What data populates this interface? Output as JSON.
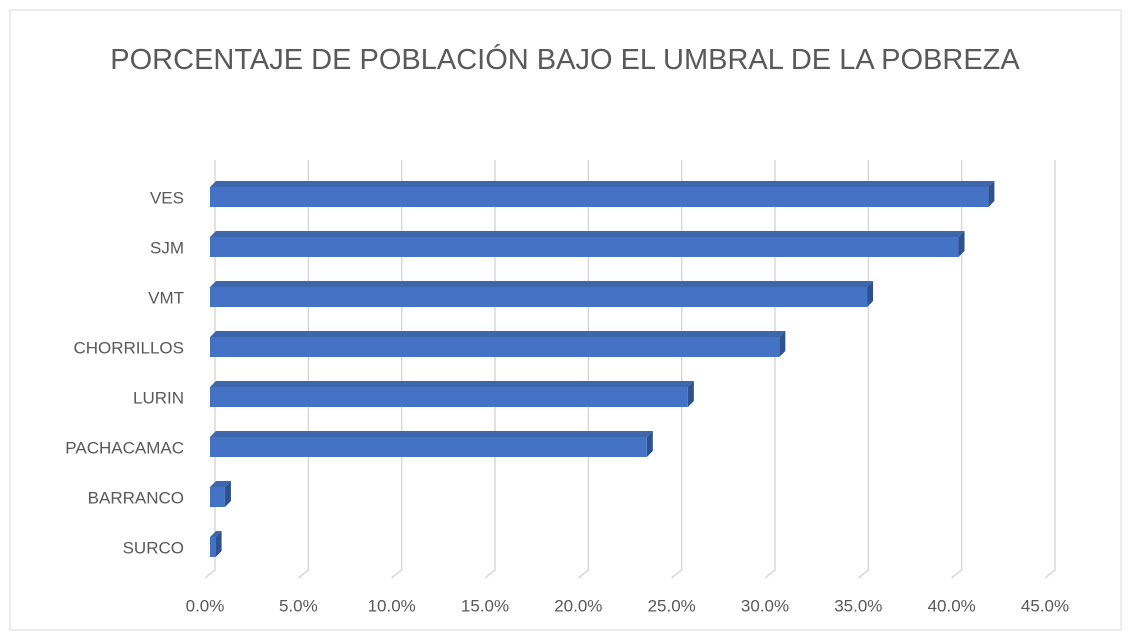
{
  "chart_data": {
    "type": "bar",
    "orientation": "horizontal",
    "title": "PORCENTAJE DE POBLACIÓN BAJO EL UMBRAL DE  LA POBREZA",
    "categories": [
      "VES",
      "SJM",
      "VMT",
      "CHORRILLOS",
      "LURIN",
      "PACHACAMAC",
      "BARRANCO",
      "SURCO"
    ],
    "values": [
      41.7,
      40.1,
      35.2,
      30.5,
      25.6,
      23.4,
      0.8,
      0.3
    ],
    "color": "#4472c4",
    "xlim": [
      0,
      45
    ],
    "xticks": [
      {
        "value": 0,
        "label": "0.0%"
      },
      {
        "value": 5,
        "label": "5.0%"
      },
      {
        "value": 10,
        "label": "10.0%"
      },
      {
        "value": 15,
        "label": "15.0%"
      },
      {
        "value": 20,
        "label": "20.0%"
      },
      {
        "value": 25,
        "label": "25.0%"
      },
      {
        "value": 30,
        "label": "30.0%"
      },
      {
        "value": 35,
        "label": "35.0%"
      },
      {
        "value": 40,
        "label": "40.0%"
      },
      {
        "value": 45,
        "label": "45.0%"
      }
    ],
    "grid": true
  }
}
